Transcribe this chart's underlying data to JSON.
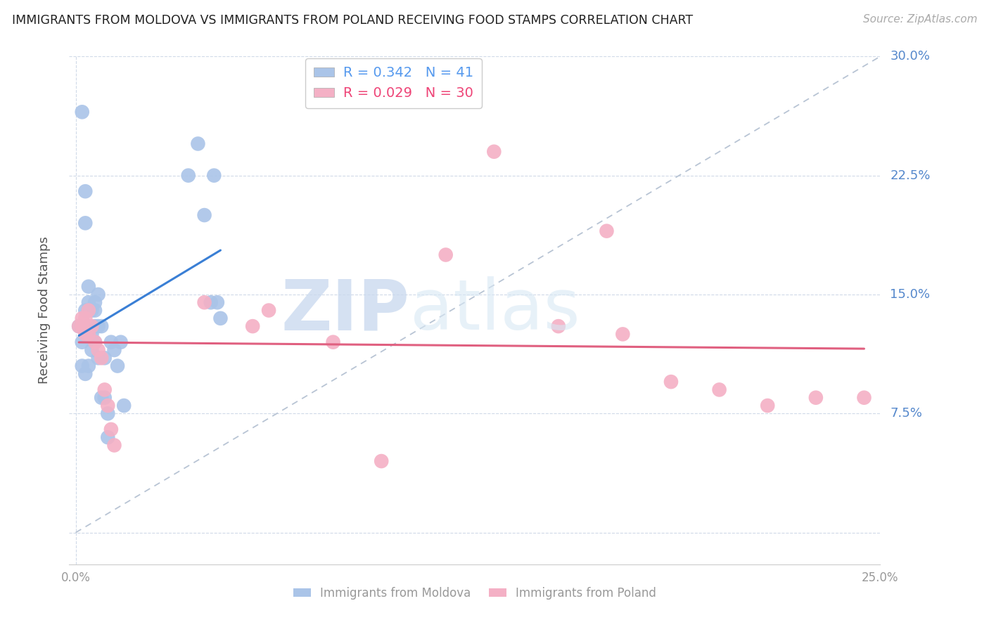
{
  "title": "IMMIGRANTS FROM MOLDOVA VS IMMIGRANTS FROM POLAND RECEIVING FOOD STAMPS CORRELATION CHART",
  "source": "Source: ZipAtlas.com",
  "ylabel": "Receiving Food Stamps",
  "xlim": [
    -0.002,
    0.25
  ],
  "ylim": [
    -0.02,
    0.3
  ],
  "xticks": [
    0.0,
    0.05,
    0.1,
    0.15,
    0.2,
    0.25
  ],
  "yticks": [
    0.0,
    0.075,
    0.15,
    0.225,
    0.3
  ],
  "moldova_R": 0.342,
  "moldova_N": 41,
  "poland_R": 0.029,
  "poland_N": 30,
  "moldova_color": "#aac4e8",
  "poland_color": "#f4b0c5",
  "moldova_line_color": "#3a7fd5",
  "poland_line_color": "#e06080",
  "reference_line_color": "#b8c4d4",
  "legend_label_moldova": "Immigrants from Moldova",
  "legend_label_poland": "Immigrants from Poland",
  "watermark_zip": "ZIP",
  "watermark_atlas": "atlas",
  "moldova_x": [
    0.001,
    0.002,
    0.002,
    0.002,
    0.003,
    0.003,
    0.003,
    0.003,
    0.004,
    0.004,
    0.004,
    0.004,
    0.004,
    0.005,
    0.005,
    0.005,
    0.006,
    0.006,
    0.006,
    0.006,
    0.007,
    0.007,
    0.007,
    0.008,
    0.008,
    0.009,
    0.009,
    0.01,
    0.01,
    0.011,
    0.012,
    0.013,
    0.014,
    0.015,
    0.035,
    0.038,
    0.04,
    0.042,
    0.043,
    0.044,
    0.045
  ],
  "moldova_y": [
    0.13,
    0.265,
    0.12,
    0.105,
    0.215,
    0.195,
    0.14,
    0.1,
    0.155,
    0.145,
    0.14,
    0.13,
    0.105,
    0.14,
    0.125,
    0.115,
    0.145,
    0.14,
    0.13,
    0.12,
    0.15,
    0.13,
    0.11,
    0.13,
    0.085,
    0.11,
    0.085,
    0.075,
    0.06,
    0.12,
    0.115,
    0.105,
    0.12,
    0.08,
    0.225,
    0.245,
    0.2,
    0.145,
    0.225,
    0.145,
    0.135
  ],
  "poland_x": [
    0.001,
    0.002,
    0.002,
    0.003,
    0.003,
    0.004,
    0.004,
    0.005,
    0.006,
    0.007,
    0.008,
    0.009,
    0.01,
    0.011,
    0.012,
    0.04,
    0.055,
    0.06,
    0.08,
    0.095,
    0.115,
    0.13,
    0.15,
    0.165,
    0.17,
    0.185,
    0.2,
    0.215,
    0.23,
    0.245
  ],
  "poland_y": [
    0.13,
    0.135,
    0.13,
    0.135,
    0.125,
    0.14,
    0.125,
    0.13,
    0.12,
    0.115,
    0.11,
    0.09,
    0.08,
    0.065,
    0.055,
    0.145,
    0.13,
    0.14,
    0.12,
    0.045,
    0.175,
    0.24,
    0.13,
    0.19,
    0.125,
    0.095,
    0.09,
    0.08,
    0.085,
    0.085
  ]
}
